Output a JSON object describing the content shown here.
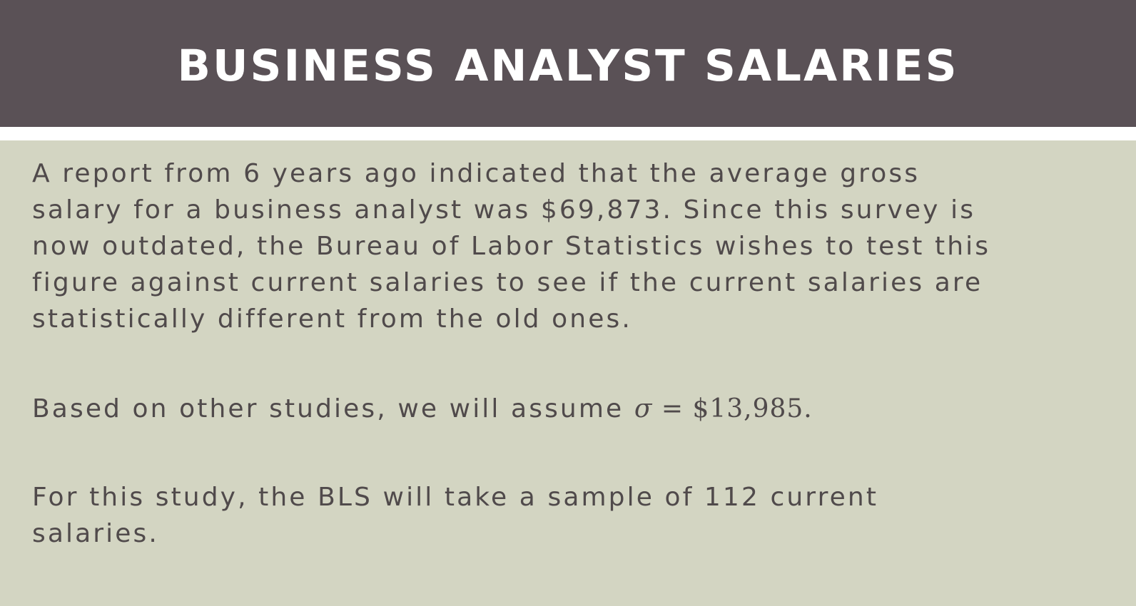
{
  "slide": {
    "title": "BUSINESS ANALYST SALARIES",
    "paragraph_1": {
      "lines": [
        "A report from 6 years ago indicated that the average gross",
        "salary for a business analyst was $69,873. Since this survey is",
        "now outdated, the Bureau of Labor Statistics wishes to test this",
        "figure against current salaries to see if the current salaries are",
        "statistically different from the old ones."
      ]
    },
    "paragraph_2": {
      "text": "Based on other studies, we will assume ",
      "math_symbol": "σ",
      "math_rest": " = $13,985."
    },
    "paragraph_3": {
      "lines": [
        "For this study, the BLS will take a sample of 112 current",
        "salaries."
      ]
    }
  }
}
